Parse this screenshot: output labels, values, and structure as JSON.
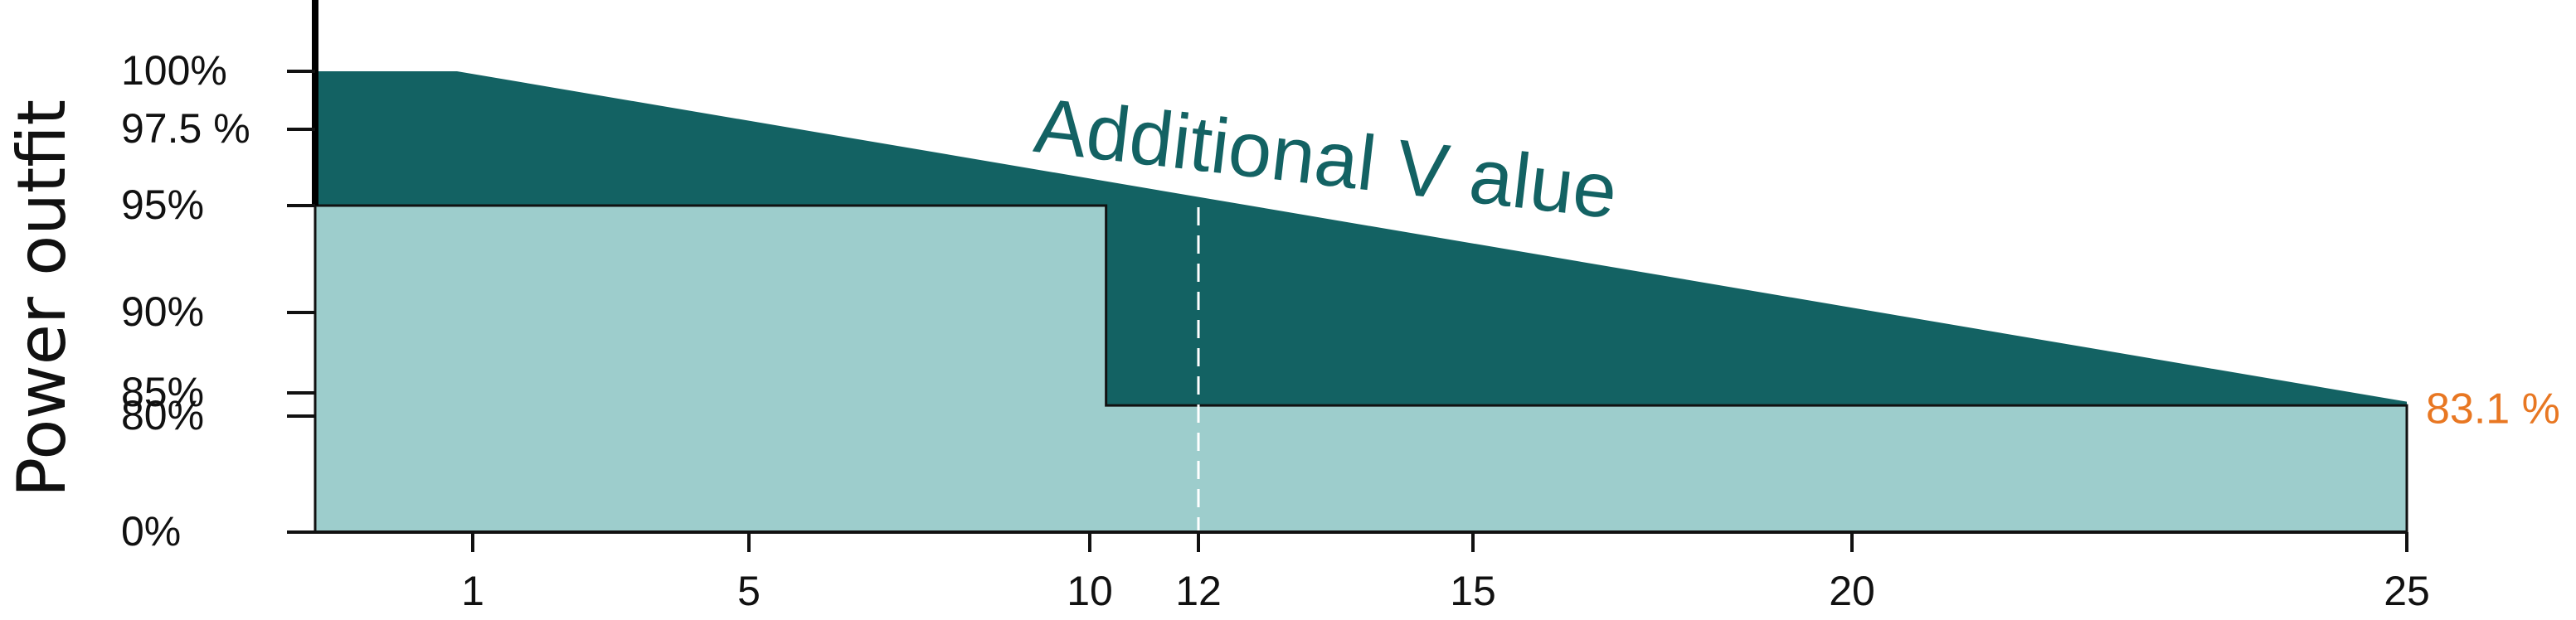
{
  "chart_data": {
    "type": "area",
    "title": "",
    "ylabel": "Power outfit",
    "xlabel": "",
    "x_ticks": [
      1,
      5,
      10,
      12,
      15,
      20,
      25
    ],
    "y_ticks": [
      "100%",
      "97.5 %",
      "95%",
      "90%",
      "85%",
      "80%",
      "0%"
    ],
    "series": [
      {
        "x": [
          0,
          0.9,
          25
        ],
        "y": [
          100,
          100,
          83.1
        ]
      },
      {
        "x": [
          0,
          10.3,
          10.3,
          25
        ],
        "y": [
          95,
          95,
          82.3,
          82.3
        ]
      }
    ],
    "annotations": [
      {
        "text": "Additional V alue",
        "color": "#136263"
      },
      {
        "text": "83.1 %",
        "color": "#e87722"
      }
    ],
    "marker_x": 12,
    "colors": {
      "upper": "#136263",
      "lower": "#9dcdcc",
      "accent": "#e87722"
    }
  }
}
